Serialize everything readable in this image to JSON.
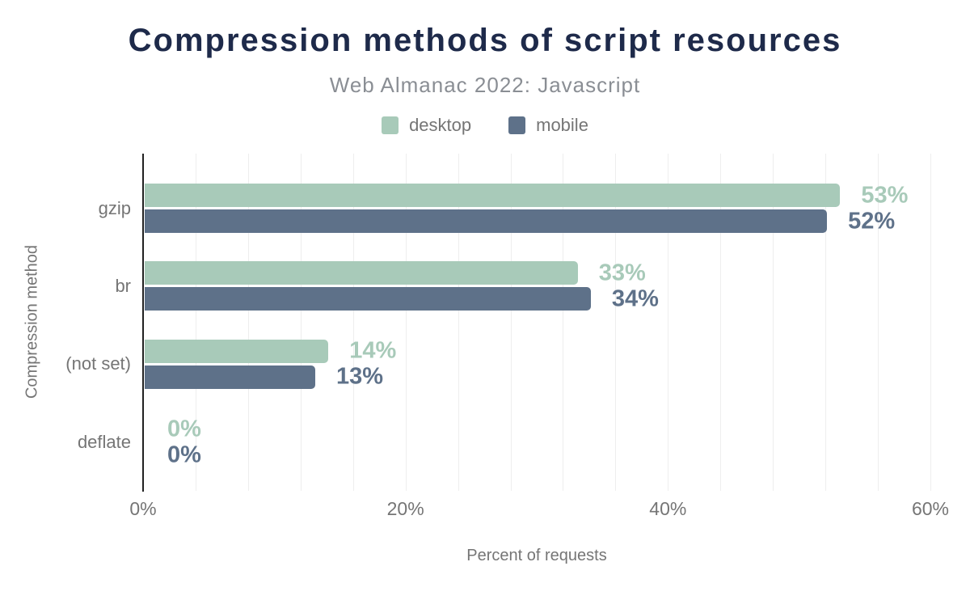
{
  "header": {
    "title": "Compression methods of script resources",
    "subtitle": "Web Almanac 2022: Javascript"
  },
  "legend": [
    {
      "label": "desktop",
      "color": "#a8cab9"
    },
    {
      "label": "mobile",
      "color": "#5e7189"
    }
  ],
  "chart_data": {
    "type": "bar",
    "orientation": "horizontal",
    "title": "Compression methods of script resources",
    "subtitle": "Web Almanac 2022: Javascript",
    "categories": [
      "gzip",
      "br",
      "(not set)",
      "deflate"
    ],
    "series": [
      {
        "name": "desktop",
        "color": "#a8cab9",
        "values": [
          53,
          33,
          14,
          0
        ],
        "labels": [
          "53%",
          "33%",
          "14%",
          "0%"
        ]
      },
      {
        "name": "mobile",
        "color": "#5e7189",
        "values": [
          52,
          34,
          13,
          0
        ],
        "labels": [
          "52%",
          "34%",
          "13%",
          "0%"
        ]
      }
    ],
    "xlabel": "Percent of requests",
    "ylabel": "Compression method",
    "xlim": [
      0,
      60
    ],
    "xticks": [
      {
        "value": 0,
        "label": "0%"
      },
      {
        "value": 20,
        "label": "20%"
      },
      {
        "value": 40,
        "label": "40%"
      },
      {
        "value": 60,
        "label": "60%"
      }
    ],
    "grid": {
      "show": true,
      "step_pct": 4,
      "max_pct": 60
    },
    "legend_position": "top"
  },
  "colors": {
    "title": "#1e2a4a",
    "subtitle": "#8a8e94",
    "axis_text": "#757575",
    "axis_line": "#212121",
    "gridline": "#eeeeee",
    "desktop": "#a8cab9",
    "mobile": "#5e7189"
  }
}
